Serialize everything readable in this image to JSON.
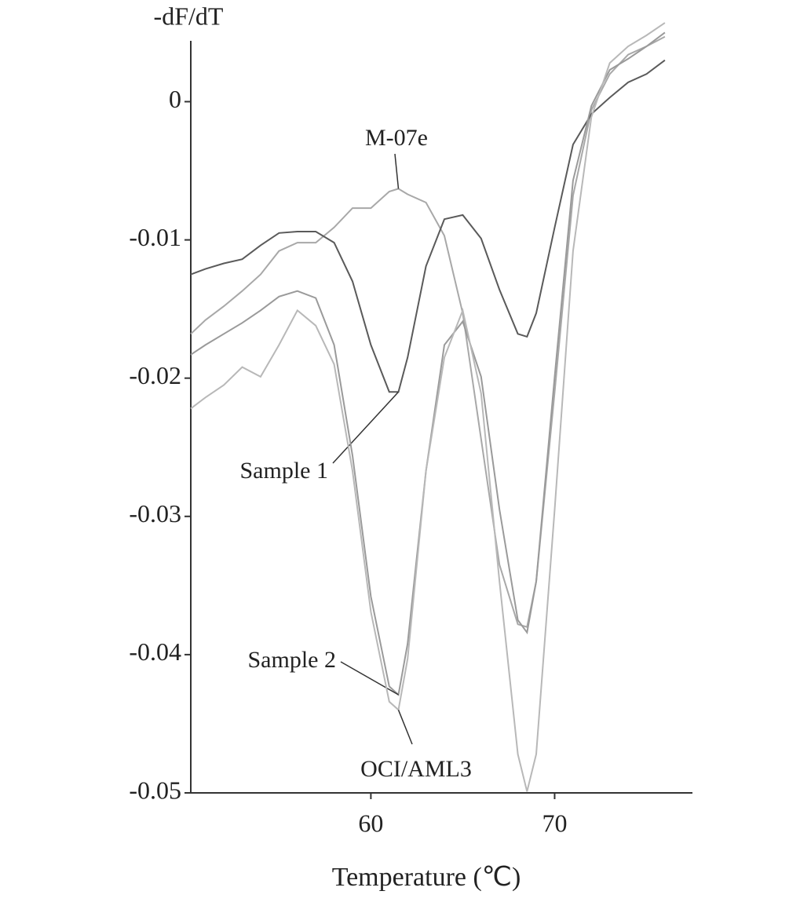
{
  "chart_data": {
    "type": "line",
    "ylabel": "-dF/dT",
    "xlabel": "Temperature (℃)",
    "xlim": [
      50.2,
      77.5
    ],
    "ylim": [
      -0.05,
      0.0044
    ],
    "xticks": [
      60,
      70
    ],
    "yticks": [
      0,
      -0.01,
      -0.02,
      -0.03,
      -0.04,
      -0.05
    ],
    "x": [
      50.2,
      51,
      52,
      53,
      54,
      55,
      56,
      57,
      58,
      59,
      60,
      61,
      61.5,
      62,
      63,
      64,
      65,
      66,
      67,
      68,
      68.5,
      69,
      70,
      71,
      72,
      73,
      74,
      75,
      76
    ],
    "series": [
      {
        "name": "M-07e",
        "color": "#a8a8a8",
        "values": [
          -0.0168,
          -0.0158,
          -0.0148,
          -0.0137,
          -0.0125,
          -0.0108,
          -0.0102,
          -0.0102,
          -0.0091,
          -0.0077,
          -0.0077,
          -0.0065,
          -0.0063,
          -0.0067,
          -0.0073,
          -0.0097,
          -0.0153,
          -0.0244,
          -0.0335,
          -0.0378,
          -0.038,
          -0.0347,
          -0.021,
          -0.0068,
          -0.0006,
          0.002,
          0.0034,
          0.004,
          0.0047
        ]
      },
      {
        "name": "Sample 1",
        "color": "#5a5a5a",
        "values": [
          -0.0125,
          -0.0121,
          -0.0117,
          -0.0114,
          -0.0104,
          -0.0095,
          -0.0094,
          -0.0094,
          -0.0102,
          -0.013,
          -0.0176,
          -0.021,
          -0.021,
          -0.0185,
          -0.0119,
          -0.0085,
          -0.0082,
          -0.0099,
          -0.0136,
          -0.0168,
          -0.017,
          -0.0153,
          -0.0091,
          -0.0031,
          -0.0009,
          0.0003,
          0.0014,
          0.002,
          0.003
        ]
      },
      {
        "name": "Sample 2",
        "color": "#9a9a9a",
        "values": [
          -0.0183,
          -0.0176,
          -0.0168,
          -0.016,
          -0.0151,
          -0.0141,
          -0.0137,
          -0.0142,
          -0.0176,
          -0.0256,
          -0.0358,
          -0.0423,
          -0.0429,
          -0.0392,
          -0.0267,
          -0.0176,
          -0.0159,
          -0.0199,
          -0.0295,
          -0.0375,
          -0.0384,
          -0.0347,
          -0.0199,
          -0.0057,
          -0.0003,
          0.0023,
          0.0031,
          0.004,
          0.005
        ]
      },
      {
        "name": "OCI/AML3",
        "color": "#b8b8b8",
        "values": [
          -0.0222,
          -0.0214,
          -0.0205,
          -0.0192,
          -0.0199,
          -0.0176,
          -0.0151,
          -0.0162,
          -0.019,
          -0.0267,
          -0.0369,
          -0.0434,
          -0.044,
          -0.0403,
          -0.0267,
          -0.0185,
          -0.0151,
          -0.0211,
          -0.0347,
          -0.0472,
          -0.0499,
          -0.0472,
          -0.0295,
          -0.0108,
          -0.0011,
          0.0028,
          0.004,
          0.0048,
          0.0057
        ]
      }
    ]
  }
}
